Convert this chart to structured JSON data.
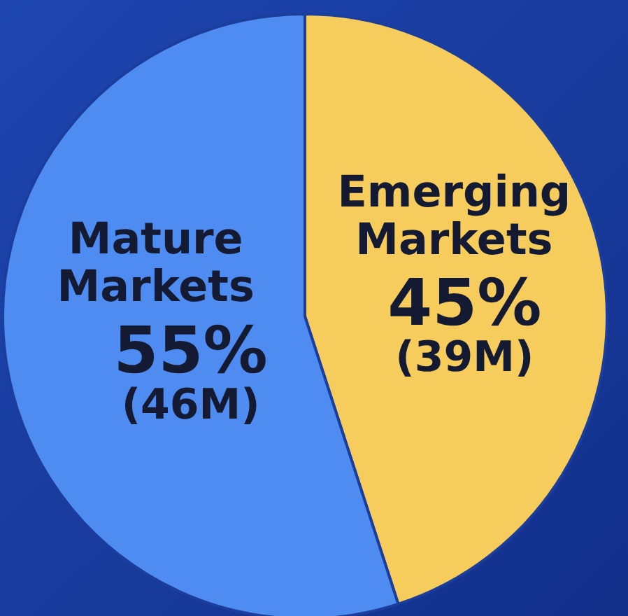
{
  "chart_data": {
    "type": "pie",
    "categories": [
      "Emerging Markets",
      "Mature Markets"
    ],
    "values": [
      45,
      55
    ],
    "colors": [
      "#f6cd5c",
      "#4f8cf2"
    ],
    "value_labels": [
      "45%\n(39M)",
      "55%\n(46M)"
    ]
  }
}
